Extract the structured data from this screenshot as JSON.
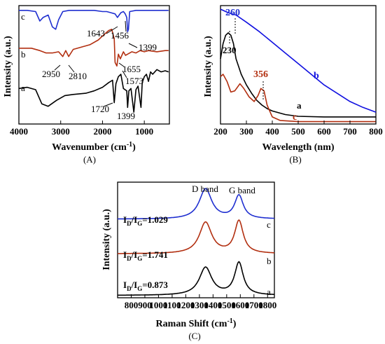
{
  "colors": {
    "a": "#000000",
    "b": "#b22f10",
    "c": "#1f2fd0",
    "c_alt": "#1010e0"
  },
  "chart_data": [
    {
      "type": "line",
      "id": "A",
      "panel_label": "(A)",
      "xlabel": "Wavenumber (cm",
      "xlabel_sup": "-1",
      "xlabel_close": ")",
      "ylabel": "Intensity (a.u.)",
      "xlim": [
        4000,
        400
      ],
      "ylim": [
        0,
        1
      ],
      "xticks": [
        4000,
        3000,
        2000,
        1000
      ],
      "series": [
        {
          "name": "a",
          "label": "a",
          "color": "#000000",
          "points": [
            [
              4000,
              0.3
            ],
            [
              3800,
              0.31
            ],
            [
              3600,
              0.29
            ],
            [
              3450,
              0.17
            ],
            [
              3300,
              0.15
            ],
            [
              3100,
              0.2
            ],
            [
              2900,
              0.24
            ],
            [
              2700,
              0.25
            ],
            [
              2400,
              0.26
            ],
            [
              2200,
              0.28
            ],
            [
              2000,
              0.31
            ],
            [
              1850,
              0.35
            ],
            [
              1760,
              0.37
            ],
            [
              1720,
              0.18
            ],
            [
              1680,
              0.34
            ],
            [
              1620,
              0.4
            ],
            [
              1560,
              0.42
            ],
            [
              1500,
              0.3
            ],
            [
              1420,
              0.28
            ],
            [
              1399,
              0.14
            ],
            [
              1370,
              0.28
            ],
            [
              1320,
              0.3
            ],
            [
              1250,
              0.1
            ],
            [
              1200,
              0.29
            ],
            [
              1150,
              0.32
            ],
            [
              1080,
              0.14
            ],
            [
              1050,
              0.35
            ],
            [
              1000,
              0.4
            ],
            [
              950,
              0.42
            ],
            [
              900,
              0.36
            ],
            [
              850,
              0.44
            ],
            [
              800,
              0.42
            ],
            [
              700,
              0.46
            ],
            [
              600,
              0.44
            ],
            [
              500,
              0.45
            ],
            [
              420,
              0.44
            ]
          ]
        },
        {
          "name": "b",
          "label": "b",
          "color": "#b22f10",
          "points": [
            [
              4000,
              0.64
            ],
            [
              3700,
              0.64
            ],
            [
              3500,
              0.62
            ],
            [
              3350,
              0.6
            ],
            [
              3200,
              0.6
            ],
            [
              3050,
              0.61
            ],
            [
              2950,
              0.57
            ],
            [
              2880,
              0.62
            ],
            [
              2810,
              0.57
            ],
            [
              2700,
              0.63
            ],
            [
              2500,
              0.65
            ],
            [
              2300,
              0.67
            ],
            [
              2100,
              0.71
            ],
            [
              1950,
              0.76
            ],
            [
              1850,
              0.79
            ],
            [
              1780,
              0.8
            ],
            [
              1720,
              0.72
            ],
            [
              1700,
              0.52
            ],
            [
              1655,
              0.49
            ],
            [
              1620,
              0.59
            ],
            [
              1573,
              0.55
            ],
            [
              1500,
              0.61
            ],
            [
              1450,
              0.58
            ],
            [
              1400,
              0.59
            ],
            [
              1300,
              0.61
            ],
            [
              1200,
              0.6
            ],
            [
              1100,
              0.62
            ],
            [
              1000,
              0.61
            ],
            [
              900,
              0.62
            ],
            [
              700,
              0.61
            ],
            [
              500,
              0.62
            ],
            [
              420,
              0.62
            ]
          ]
        },
        {
          "name": "c",
          "label": "c",
          "color": "#1f2fd0",
          "points": [
            [
              4000,
              0.96
            ],
            [
              3800,
              0.96
            ],
            [
              3600,
              0.95
            ],
            [
              3500,
              0.87
            ],
            [
              3420,
              0.9
            ],
            [
              3300,
              0.92
            ],
            [
              3200,
              0.82
            ],
            [
              3120,
              0.8
            ],
            [
              3050,
              0.88
            ],
            [
              2950,
              0.95
            ],
            [
              2800,
              0.96
            ],
            [
              2500,
              0.96
            ],
            [
              2200,
              0.96
            ],
            [
              2000,
              0.95
            ],
            [
              1900,
              0.95
            ],
            [
              1800,
              0.94
            ],
            [
              1700,
              0.93
            ],
            [
              1643,
              0.9
            ],
            [
              1560,
              0.94
            ],
            [
              1500,
              0.95
            ],
            [
              1456,
              0.93
            ],
            [
              1420,
              0.9
            ],
            [
              1399,
              0.78
            ],
            [
              1380,
              0.8
            ],
            [
              1350,
              0.95
            ],
            [
              1200,
              0.96
            ],
            [
              1000,
              0.96
            ],
            [
              800,
              0.96
            ],
            [
              600,
              0.96
            ],
            [
              420,
              0.96
            ]
          ]
        }
      ],
      "annotations": [
        "1643",
        "1456",
        "1399",
        "2950",
        "2810",
        "1655",
        "1573",
        "1720",
        "1399"
      ]
    },
    {
      "type": "line",
      "id": "B",
      "panel_label": "(B)",
      "xlabel": "Wavelength (nm)",
      "ylabel": "Intensity (a.u.)",
      "xlim": [
        200,
        800
      ],
      "ylim": [
        0,
        1
      ],
      "xticks": [
        200,
        300,
        400,
        500,
        600,
        700,
        800
      ],
      "series": [
        {
          "name": "a",
          "label": "a",
          "color": "#000000",
          "points": [
            [
              200,
              0.55
            ],
            [
              210,
              0.68
            ],
            [
              220,
              0.75
            ],
            [
              230,
              0.77
            ],
            [
              240,
              0.75
            ],
            [
              250,
              0.68
            ],
            [
              260,
              0.55
            ],
            [
              280,
              0.42
            ],
            [
              300,
              0.33
            ],
            [
              320,
              0.26
            ],
            [
              340,
              0.2
            ],
            [
              360,
              0.16
            ],
            [
              380,
              0.13
            ],
            [
              400,
              0.11
            ],
            [
              450,
              0.08
            ],
            [
              500,
              0.065
            ],
            [
              600,
              0.06
            ],
            [
              700,
              0.06
            ],
            [
              800,
              0.06
            ]
          ]
        },
        {
          "name": "b",
          "label": "b",
          "color": "#1010e0",
          "points": [
            [
              200,
              0.97
            ],
            [
              230,
              0.94
            ],
            [
              260,
              0.92
            ],
            [
              300,
              0.86
            ],
            [
              350,
              0.78
            ],
            [
              400,
              0.69
            ],
            [
              450,
              0.6
            ],
            [
              500,
              0.51
            ],
            [
              550,
              0.42
            ],
            [
              600,
              0.33
            ],
            [
              650,
              0.26
            ],
            [
              700,
              0.19
            ],
            [
              750,
              0.14
            ],
            [
              800,
              0.1
            ]
          ]
        },
        {
          "name": "c",
          "label": "c",
          "color": "#b22f10",
          "points": [
            [
              200,
              0.4
            ],
            [
              210,
              0.42
            ],
            [
              225,
              0.36
            ],
            [
              240,
              0.27
            ],
            [
              255,
              0.28
            ],
            [
              275,
              0.34
            ],
            [
              290,
              0.3
            ],
            [
              310,
              0.23
            ],
            [
              330,
              0.19
            ],
            [
              345,
              0.24
            ],
            [
              356,
              0.3
            ],
            [
              368,
              0.28
            ],
            [
              380,
              0.16
            ],
            [
              400,
              0.06
            ],
            [
              430,
              0.03
            ],
            [
              500,
              0.02
            ],
            [
              600,
              0.02
            ],
            [
              700,
              0.02
            ],
            [
              800,
              0.02
            ]
          ]
        }
      ],
      "annotations": [
        "260",
        "230",
        "356",
        "a",
        "b",
        "c"
      ]
    },
    {
      "type": "line",
      "id": "C",
      "panel_label": "(C)",
      "xlabel": "Raman Shift (cm",
      "xlabel_sup": "-1",
      "xlabel_close": ")",
      "ylabel": "Intensity (a.u.)",
      "xlim": [
        700,
        1850
      ],
      "ylim": [
        0,
        1
      ],
      "xticks": [
        800,
        900,
        1000,
        1100,
        1200,
        1300,
        1400,
        1500,
        1600,
        1700,
        1800
      ],
      "band_labels": [
        "D band",
        "G band"
      ],
      "ratio_labels": [
        {
          "base": "I",
          "sub1": "D",
          "slash": "/I",
          "sub2": "G",
          "value": "=1.029"
        },
        {
          "base": "I",
          "sub1": "D",
          "slash": "/I",
          "sub2": "G",
          "value": "=1.741"
        },
        {
          "base": "I",
          "sub1": "D",
          "slash": "/I",
          "sub2": "G",
          "value": "=0.873"
        }
      ],
      "series": [
        {
          "name": "c",
          "label": "c",
          "color": "#1f2fd0",
          "offset": 0.68,
          "d_height": 0.26,
          "g_height": 0.2
        },
        {
          "name": "b",
          "label": "b",
          "color": "#b22f10",
          "offset": 0.38,
          "d_height": 0.27,
          "g_height": 0.28
        },
        {
          "name": "a",
          "label": "a",
          "color": "#000000",
          "offset": 0.02,
          "d_height": 0.24,
          "g_height": 0.28
        }
      ]
    }
  ]
}
